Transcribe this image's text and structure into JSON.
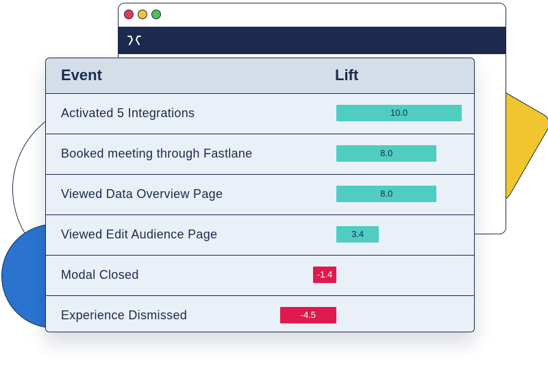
{
  "table": {
    "headers": {
      "event": "Event",
      "lift": "Lift"
    },
    "rows": [
      {
        "event": "Activated 5 Integrations",
        "lift": "10.0",
        "value": 10.0
      },
      {
        "event": "Booked meeting through Fastlane",
        "lift": "8.0",
        "value": 8.0
      },
      {
        "event": "Viewed Data Overview Page",
        "lift": "8.0",
        "value": 8.0
      },
      {
        "event": "Viewed Edit Audience Page",
        "lift": "3.4",
        "value": 3.4
      },
      {
        "event": "Modal Closed",
        "lift": "-1.4",
        "value": -1.4
      },
      {
        "event": "Experience Dismissed",
        "lift": "-4.5",
        "value": -4.5
      }
    ]
  },
  "colors": {
    "navy": "#1b2a4e",
    "positive_bar": "#4ecdc0",
    "negative_bar": "#e0194e",
    "yellow": "#f0c52e",
    "blue": "#2a73d0"
  },
  "icons": [
    "window-close-dot",
    "window-minimize-dot",
    "window-maximize-dot",
    "logo-icon"
  ]
}
